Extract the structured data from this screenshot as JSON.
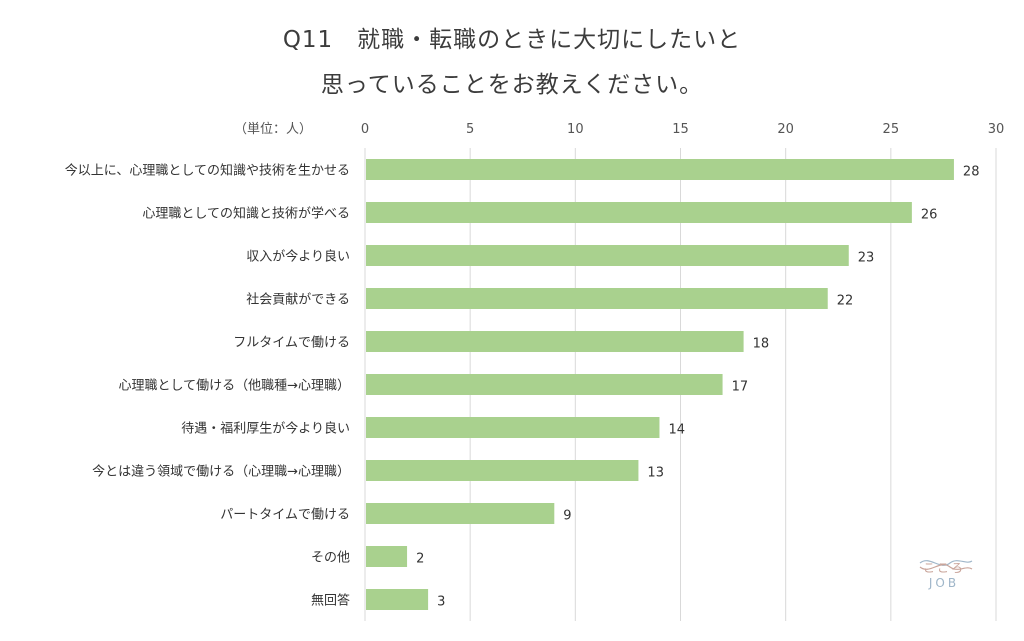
{
  "title_line1": "Q11　就職・転職のときに大切にしたいと",
  "title_line2": "思っていることをお教えください。",
  "unit_label": "（単位：人）",
  "logo": {
    "line1": "こころ",
    "line2": "JOB"
  },
  "colors": {
    "bar": "#a9d18e",
    "grid": "#d9d9d9"
  },
  "chart_data": {
    "type": "bar",
    "orientation": "horizontal",
    "categories": [
      "今以上に、心理職としての知識や技術を生かせる",
      "心理職としての知識と技術が学べる",
      "収入が今より良い",
      "社会貢献ができる",
      "フルタイムで働ける",
      "心理職として働ける（他職種→心理職）",
      "待遇・福利厚生が今より良い",
      "今とは違う領域で働ける（心理職→心理職）",
      "パートタイムで働ける",
      "その他",
      "無回答"
    ],
    "values": [
      28,
      26,
      23,
      22,
      18,
      17,
      14,
      13,
      9,
      2,
      3
    ],
    "xlim": [
      0,
      30
    ],
    "ticks": [
      0,
      5,
      10,
      15,
      20,
      25,
      30
    ],
    "axis_position": "top",
    "grid": true,
    "data_labels": true
  }
}
